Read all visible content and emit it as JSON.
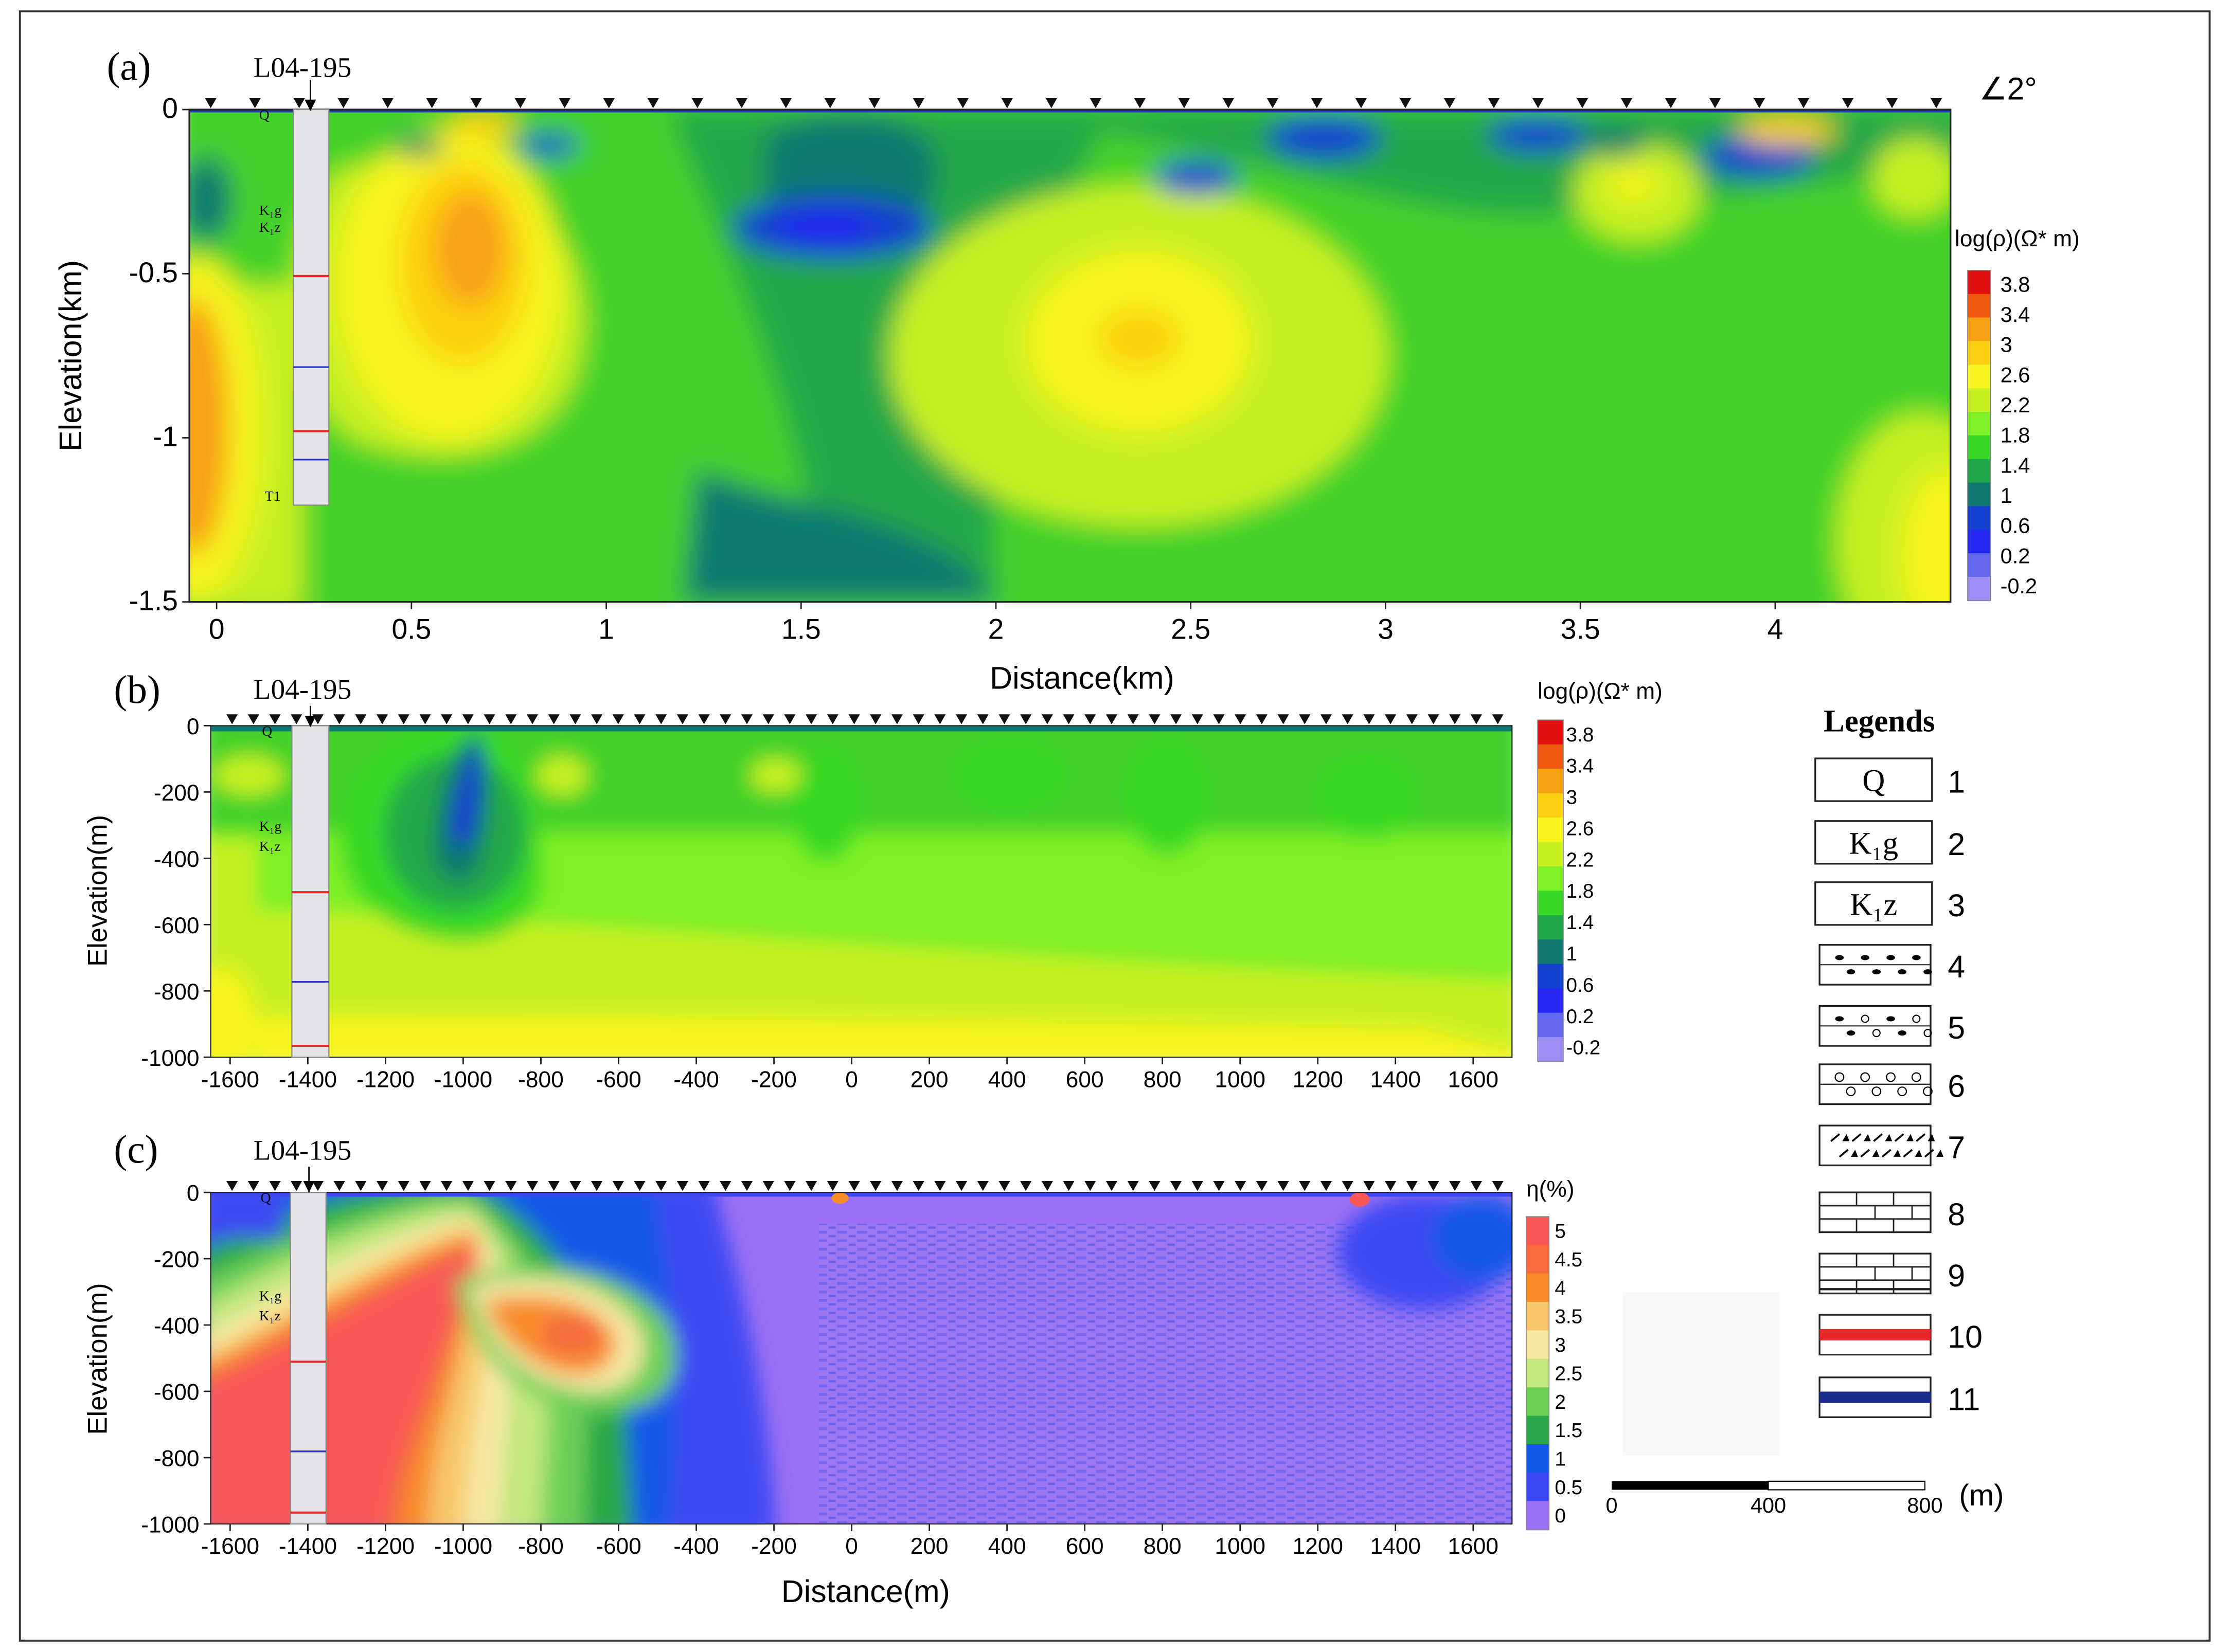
{
  "chart_data": [
    {
      "id": "a",
      "type": "heatmap",
      "panel_label": "(a)",
      "borehole_label": "L04-195",
      "dip_label": "∠2°",
      "xlabel": "Distance(km)",
      "ylabel": "Elevation(km)",
      "xlim": [
        -0.07,
        4.45
      ],
      "ylim": [
        -1.5,
        0
      ],
      "x_ticks": [
        0,
        0.5,
        1,
        1.5,
        2,
        2.5,
        3,
        3.5,
        4
      ],
      "x_tick_labels": [
        "0",
        "0.5",
        "1",
        "1.5",
        "2",
        "2.5",
        "3",
        "3.5",
        "4"
      ],
      "y_ticks": [
        0,
        -0.5,
        -1,
        -1.5
      ],
      "y_tick_labels": [
        "0",
        "-0.5",
        "-1",
        "-1.5"
      ],
      "colorbar_title": "log(ρ)(Ω* m)",
      "colorbar_ticks": [
        "3.8",
        "3.4",
        "3",
        "2.6",
        "2.2",
        "1.8",
        "1.4",
        "1",
        "0.6",
        "0.2",
        "-0.2"
      ],
      "colorbar_colors": [
        "#e41010",
        "#f05a10",
        "#f8a014",
        "#fcd010",
        "#f6f41a",
        "#c6f020",
        "#7ef028",
        "#38d828",
        "#20a848",
        "#107a70",
        "#1440d0",
        "#2428f0",
        "#6468f0",
        "#9c8cf4"
      ],
      "strata_labels": [
        "Q",
        "K₁g",
        "K₁z",
        "T1"
      ],
      "station_count": 40,
      "features": [
        {
          "x": 0.62,
          "y": -0.4,
          "value": 2.9
        },
        {
          "x": 2.35,
          "y": -0.7,
          "value": 2.6
        },
        {
          "x": -0.03,
          "y": -0.95,
          "value": 2.9
        },
        {
          "x": 1.55,
          "y": -0.38,
          "value": 0.7
        },
        {
          "x": 1.65,
          "y": -1.35,
          "value": 1.0
        },
        {
          "x": 3.55,
          "y": -0.25,
          "value": 2.3
        },
        {
          "x": 4.4,
          "y": -1.35,
          "value": 2.7
        }
      ]
    },
    {
      "id": "b",
      "type": "heatmap",
      "panel_label": "(b)",
      "borehole_label": "L04-195",
      "xlabel": "",
      "ylabel": "Elevation(m)",
      "xlim": [
        -1650,
        1700
      ],
      "ylim": [
        -1000,
        0
      ],
      "x_ticks": [
        -1600,
        -1400,
        -1200,
        -1000,
        -800,
        -600,
        -400,
        -200,
        0,
        200,
        400,
        600,
        800,
        1000,
        1200,
        1400,
        1600
      ],
      "x_tick_labels": [
        "-1600",
        "-1400",
        "-1200",
        "-1000",
        "-800",
        "-600",
        "-400",
        "-200",
        "0",
        "200",
        "400",
        "600",
        "800",
        "1000",
        "1200",
        "1400",
        "1600"
      ],
      "y_ticks": [
        0,
        -200,
        -400,
        -600,
        -800,
        -1000
      ],
      "y_tick_labels": [
        "0",
        "-200",
        "-400",
        "-600",
        "-800",
        "-1000"
      ],
      "colorbar_title": "log(ρ)(Ω* m)",
      "colorbar_ticks": [
        "3.8",
        "3.4",
        "3",
        "2.6",
        "2.2",
        "1.8",
        "1.4",
        "1",
        "0.6",
        "0.2",
        "-0.2"
      ],
      "colorbar_colors": [
        "#e41010",
        "#f05a10",
        "#f8a014",
        "#fcd010",
        "#f6f41a",
        "#c6f020",
        "#7ef028",
        "#38d828",
        "#20a848",
        "#107a70",
        "#1440d0",
        "#2428f0",
        "#6468f0",
        "#9c8cf4"
      ],
      "strata_labels": [
        "Q",
        "K₁g",
        "K₁z"
      ],
      "station_count": 60,
      "features": [
        {
          "x": -980,
          "y": -380,
          "value": 0.8
        },
        {
          "x": 0,
          "y": -850,
          "value": 2.2
        }
      ]
    },
    {
      "id": "c",
      "type": "heatmap",
      "panel_label": "(c)",
      "borehole_label": "L04-195",
      "xlabel": "Distance(m)",
      "ylabel": "Elevation(m)",
      "xlim": [
        -1650,
        1700
      ],
      "ylim": [
        -1000,
        0
      ],
      "x_ticks": [
        -1600,
        -1400,
        -1200,
        -1000,
        -800,
        -600,
        -400,
        -200,
        0,
        200,
        400,
        600,
        800,
        1000,
        1200,
        1400,
        1600
      ],
      "x_tick_labels": [
        "-1600",
        "-1400",
        "-1200",
        "-1000",
        "-800",
        "-600",
        "-400",
        "-200",
        "0",
        "200",
        "400",
        "600",
        "800",
        "1000",
        "1200",
        "1400",
        "1600"
      ],
      "y_ticks": [
        0,
        -200,
        -400,
        -600,
        -800,
        -1000
      ],
      "y_tick_labels": [
        "0",
        "-200",
        "-400",
        "-600",
        "-800",
        "-1000"
      ],
      "colorbar_title": "η(%)",
      "colorbar_ticks": [
        "5",
        "4.5",
        "4",
        "3.5",
        "3",
        "2.5",
        "2",
        "1.5",
        "1",
        "0.5",
        "0"
      ],
      "colorbar_colors": [
        "#f85858",
        "#f66a3c",
        "#f88c2a",
        "#f8c86a",
        "#f6e8a0",
        "#c4e880",
        "#6cd056",
        "#28a848",
        "#1458e8",
        "#3c48f4",
        "#9c70f4"
      ],
      "strata_labels": [
        "Q",
        "K₁g",
        "K₁z"
      ],
      "station_count": 60,
      "features": [
        {
          "x": -1300,
          "y": -700,
          "value": 5
        },
        {
          "x": -700,
          "y": -430,
          "value": 4.2
        },
        {
          "x": 800,
          "y": -600,
          "value": 0
        }
      ]
    }
  ],
  "legend": {
    "title": "Legends",
    "items": [
      {
        "number": "1",
        "symbol": "Q"
      },
      {
        "number": "2",
        "symbol": "K₁g"
      },
      {
        "number": "3",
        "symbol": "K₁z"
      },
      {
        "number": "4",
        "symbol": ""
      },
      {
        "number": "5",
        "symbol": ""
      },
      {
        "number": "6",
        "symbol": ""
      },
      {
        "number": "7",
        "symbol": ""
      },
      {
        "number": "8",
        "symbol": ""
      },
      {
        "number": "9",
        "symbol": ""
      },
      {
        "number": "10",
        "symbol": ""
      },
      {
        "number": "11",
        "symbol": ""
      }
    ]
  },
  "scale_bar": {
    "ticks": [
      "0",
      "400",
      "800"
    ],
    "unit": "(m)"
  },
  "colors": {
    "red_line": "#e62828",
    "blue_line": "#1c2c8c"
  }
}
